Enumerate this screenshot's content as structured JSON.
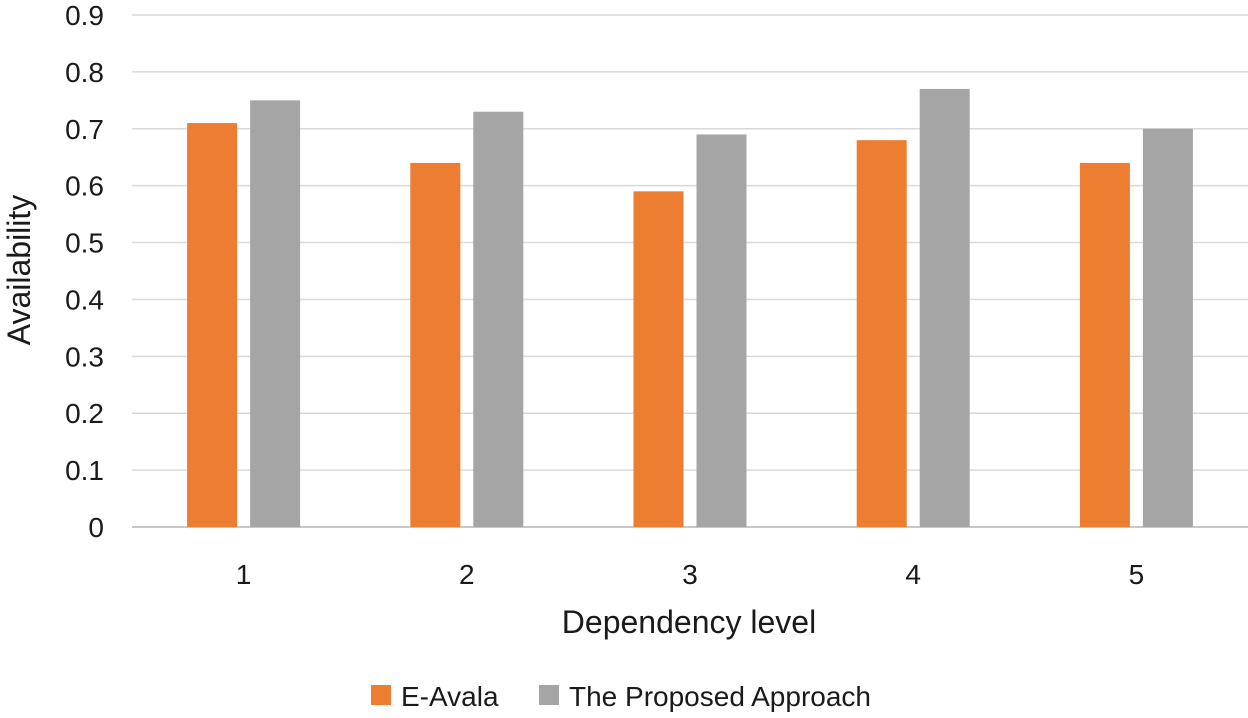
{
  "chart_data": {
    "type": "bar",
    "title": "",
    "xlabel": "Dependency level",
    "ylabel": "Availability",
    "categories": [
      "1",
      "2",
      "3",
      "4",
      "5"
    ],
    "ylim": [
      0,
      0.9
    ],
    "yticks": [
      "0",
      "0.1",
      "0.2",
      "0.3",
      "0.4",
      "0.5",
      "0.6",
      "0.7",
      "0.8",
      "0.9"
    ],
    "grid": true,
    "legend_position": "bottom",
    "series": [
      {
        "name": "E-Avala",
        "color": "#ed7d31",
        "values": [
          0.71,
          0.64,
          0.59,
          0.68,
          0.64
        ]
      },
      {
        "name": "The Proposed Approach",
        "color": "#a5a5a5",
        "values": [
          0.75,
          0.73,
          0.69,
          0.77,
          0.7
        ]
      }
    ]
  }
}
